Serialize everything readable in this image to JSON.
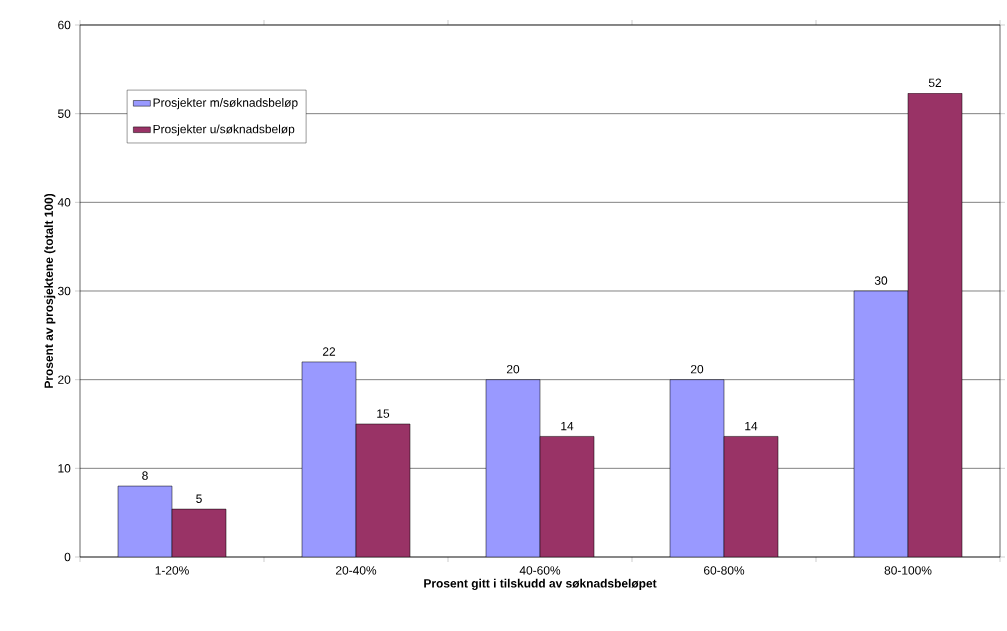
{
  "chart_data": {
    "type": "bar",
    "xlabel": "Prosent gitt i tilskudd av søknadsbeløpet",
    "ylabel": "Prosent av prosjektene (totalt 100)",
    "categories": [
      "1-20%",
      "20-40%",
      "40-60%",
      "60-80%",
      "80-100%"
    ],
    "series": [
      {
        "name": "Prosjekter m/søknadsbeløp",
        "color": "#9999ff",
        "values": [
          8,
          22,
          20,
          20,
          30
        ],
        "value_labels": [
          "8",
          "22",
          "20",
          "20",
          "30"
        ]
      },
      {
        "name": "Prosjekter u/søknadsbeløp",
        "color": "#993366",
        "values": [
          5.4,
          15,
          13.6,
          13.6,
          52.3
        ],
        "value_labels": [
          "5",
          "15",
          "14",
          "14",
          "52"
        ]
      }
    ],
    "ylim": [
      0,
      60
    ],
    "yticks": [
      0,
      10,
      20,
      30,
      40,
      50,
      60
    ],
    "grid": "y",
    "legend": "top left"
  }
}
